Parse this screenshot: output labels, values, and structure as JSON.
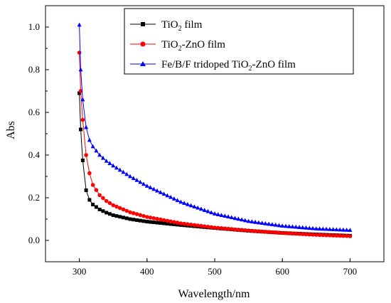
{
  "chart_data": {
    "type": "line",
    "title": "",
    "xlabel": "Wavelength/nm",
    "ylabel": "Abs",
    "xlim": [
      250,
      750
    ],
    "ylim": [
      -0.1,
      1.1
    ],
    "xticks": [
      300,
      400,
      500,
      600,
      700
    ],
    "yticks": [
      0.0,
      0.2,
      0.4,
      0.6,
      0.8,
      1.0
    ],
    "xtick_labels": [
      "300",
      "400",
      "500",
      "600",
      "700"
    ],
    "ytick_labels": [
      "0.0",
      "0.2",
      "0.4",
      "0.6",
      "0.8",
      "1.0"
    ],
    "grid": false,
    "legend_position": "top-right",
    "x_step": 5,
    "series": [
      {
        "name": "TiO2 film",
        "name_base": "TiO",
        "name_sub": "2",
        "name_rest": " film",
        "color": "#000000",
        "marker": "square",
        "anchors": [
          [
            300,
            0.69
          ],
          [
            302,
            0.52
          ],
          [
            305,
            0.375
          ],
          [
            310,
            0.235
          ],
          [
            315,
            0.19
          ],
          [
            320,
            0.168
          ],
          [
            330,
            0.145
          ],
          [
            340,
            0.13
          ],
          [
            350,
            0.118
          ],
          [
            375,
            0.1
          ],
          [
            400,
            0.088
          ],
          [
            450,
            0.072
          ],
          [
            500,
            0.058
          ],
          [
            550,
            0.045
          ],
          [
            600,
            0.035
          ],
          [
            650,
            0.028
          ],
          [
            700,
            0.022
          ]
        ]
      },
      {
        "name": "TiO2-ZnO film",
        "name_base": "TiO",
        "name_sub": "2",
        "name_rest": "-ZnO film",
        "color": "#ff0000",
        "marker": "circle",
        "anchors": [
          [
            300,
            0.88
          ],
          [
            302,
            0.7
          ],
          [
            305,
            0.565
          ],
          [
            310,
            0.4
          ],
          [
            315,
            0.315
          ],
          [
            320,
            0.26
          ],
          [
            330,
            0.212
          ],
          [
            340,
            0.185
          ],
          [
            350,
            0.165
          ],
          [
            375,
            0.132
          ],
          [
            400,
            0.11
          ],
          [
            450,
            0.08
          ],
          [
            500,
            0.06
          ],
          [
            550,
            0.046
          ],
          [
            600,
            0.035
          ],
          [
            650,
            0.026
          ],
          [
            700,
            0.02
          ]
        ]
      },
      {
        "name": "Fe/B/F tridoped TiO2-ZnO film",
        "name_base": "Fe/B/F tridoped TiO",
        "name_sub": "2",
        "name_rest": "-ZnO film",
        "color": "#0000ff",
        "marker": "triangle",
        "anchors": [
          [
            300,
            1.01
          ],
          [
            302,
            0.8
          ],
          [
            305,
            0.66
          ],
          [
            310,
            0.53
          ],
          [
            315,
            0.47
          ],
          [
            320,
            0.44
          ],
          [
            330,
            0.4
          ],
          [
            340,
            0.372
          ],
          [
            350,
            0.35
          ],
          [
            375,
            0.3
          ],
          [
            400,
            0.255
          ],
          [
            450,
            0.18
          ],
          [
            500,
            0.125
          ],
          [
            550,
            0.09
          ],
          [
            600,
            0.068
          ],
          [
            650,
            0.055
          ],
          [
            700,
            0.048
          ]
        ]
      }
    ]
  }
}
